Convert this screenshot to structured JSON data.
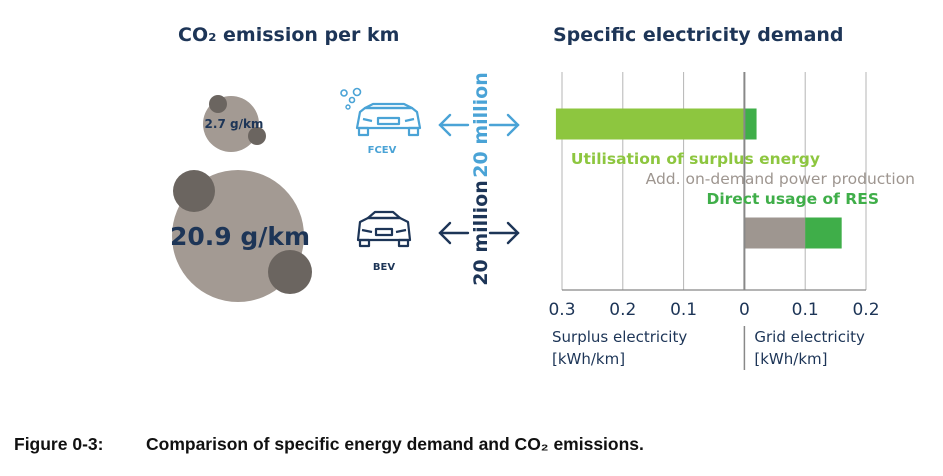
{
  "left": {
    "title": "CO₂ emission per km",
    "fcev_value": "2.7 g/km",
    "bev_value": "20.9 g/km",
    "fcev_label": "FCEV",
    "bev_label": "BEV",
    "fcev_fleet": "20 million",
    "bev_fleet": "20 million",
    "colors": {
      "fcev": "#4aa3d6",
      "bev": "#1d3557",
      "bubble": "#a39a93",
      "bubble_dark": "#6b6560"
    }
  },
  "caption": {
    "number": "Figure 0-3:",
    "text": "Comparison of specific energy demand and CO₂ emissions."
  },
  "chart_data": {
    "type": "bar",
    "title": "Specific electricity demand",
    "categories": [
      "FCEV",
      "BEV"
    ],
    "xlim": [
      -0.3,
      0.2
    ],
    "x_ticks": [
      -0.3,
      -0.2,
      -0.1,
      0,
      0.1,
      0.2
    ],
    "x_tick_labels": [
      "0.3",
      "0.2",
      "0.1",
      "0",
      "0.1",
      "0.2"
    ],
    "xlabel_left": [
      "Surplus electricity",
      "[kWh/km]"
    ],
    "xlabel_right": [
      "Grid electricity",
      "[kWh/km]"
    ],
    "grid": true,
    "series": [
      {
        "name": "Utilisation of surplus energy",
        "color": "#8dc63f",
        "values": [
          -0.31,
          0
        ]
      },
      {
        "name": "Add. on-demand power production",
        "color": "#9e9690",
        "values": [
          0,
          0.1
        ]
      },
      {
        "name": "Direct usage of RES",
        "color": "#3fae49",
        "values": [
          0.02,
          0.06
        ]
      }
    ]
  }
}
